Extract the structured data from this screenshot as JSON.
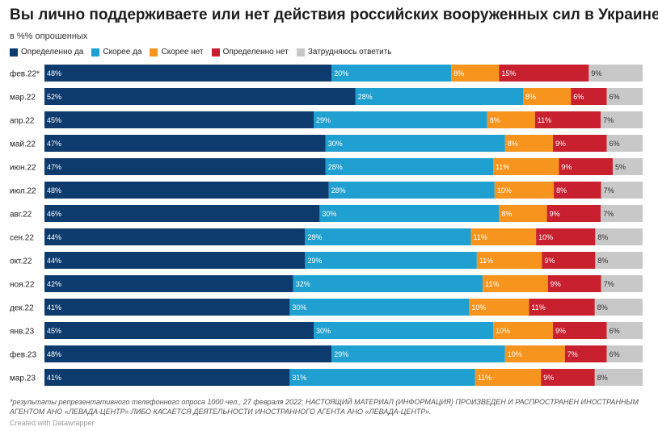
{
  "title": "Вы лично поддерживаете или нет действия российских вооруженных сил в Украине?",
  "subtitle": "в %% опрошенных",
  "footnote": "*результаты репрезентативного телефонного опроса 1000 чел., 27 февраля 2022; НАСТОЯЩИЙ МАТЕРИАЛ (ИНФОРМАЦИЯ) ПРОИЗВЕДЕН И РАСПРОСТРАНЕН ИНОСТРАННЫМ АГЕНТОМ АНО «ЛЕВАДА-ЦЕНТР» ЛИБО КАСАЕТСЯ ДЕЯТЕЛЬНОСТИ ИНОСТРАННОГО АГЕНТА АНО «ЛЕВАДА-ЦЕНТР».",
  "credit": "Created with Datawrapper",
  "legend": [
    {
      "label": "Определенно да",
      "color": "#0d3b6e"
    },
    {
      "label": "Скорее да",
      "color": "#20a0d0"
    },
    {
      "label": "Скорее нет",
      "color": "#f7941d"
    },
    {
      "label": "Определенно нет",
      "color": "#c8202f"
    },
    {
      "label": "Затрудняюсь ответить",
      "color": "#c8c8c8"
    }
  ],
  "chart_data": {
    "type": "bar",
    "orientation": "horizontal",
    "stacked": true,
    "categories": [
      "фев.22*",
      "мар.22",
      "апр.22",
      "май.22",
      "июн.22",
      "июл.22",
      "авг.22",
      "сен.22",
      "окт.22",
      "ноя.22",
      "дек.22",
      "янв.23",
      "фев.23",
      "мар.23"
    ],
    "series": [
      {
        "name": "Определенно да",
        "color": "#0d3b6e",
        "values": [
          48,
          52,
          45,
          47,
          47,
          48,
          46,
          44,
          44,
          42,
          41,
          45,
          48,
          41
        ]
      },
      {
        "name": "Скорее да",
        "color": "#20a0d0",
        "values": [
          20,
          28,
          29,
          30,
          28,
          28,
          30,
          28,
          29,
          32,
          30,
          30,
          29,
          31
        ]
      },
      {
        "name": "Скорее нет",
        "color": "#f7941d",
        "values": [
          8,
          8,
          8,
          8,
          11,
          10,
          8,
          11,
          11,
          11,
          10,
          10,
          10,
          11
        ]
      },
      {
        "name": "Определенно нет",
        "color": "#c8202f",
        "values": [
          15,
          6,
          11,
          9,
          9,
          8,
          9,
          10,
          9,
          9,
          11,
          9,
          7,
          9
        ]
      },
      {
        "name": "Затрудняюсь ответить",
        "color": "#c8c8c8",
        "values": [
          9,
          6,
          7,
          6,
          5,
          7,
          7,
          8,
          8,
          7,
          8,
          6,
          6,
          8
        ]
      }
    ],
    "value_suffix": "%"
  }
}
